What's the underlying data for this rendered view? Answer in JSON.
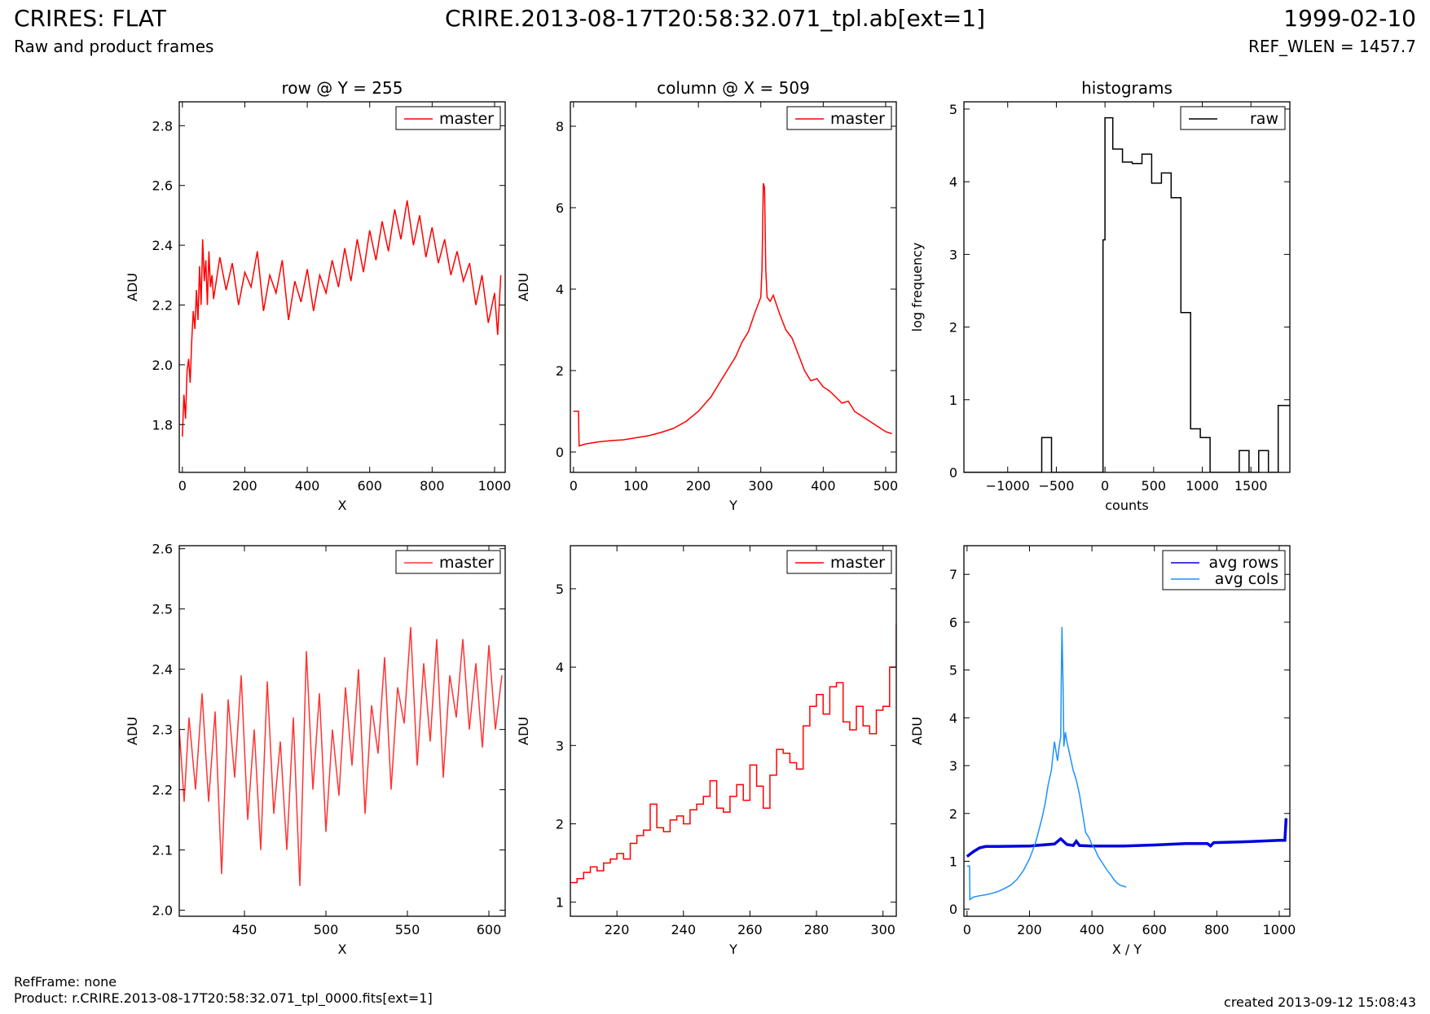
{
  "header": {
    "title_left": "CRIRES: FLAT",
    "subtitle_left": "Raw and product frames",
    "title_center": "CRIRE.2013-08-17T20:58:32.071_tpl.ab[ext=1]",
    "title_right": "1999-02-10",
    "subtitle_right": "REF_WLEN = 1457.7"
  },
  "footer": {
    "line1": "RefFrame: none",
    "line2": "Product: r.CRIRE.2013-08-17T20:58:32.071_tpl_0000.fits[ext=1]",
    "created": "created 2013-09-12 15:08:43"
  },
  "colors": {
    "master": "#ff0000",
    "master_zoom": "#ff3333",
    "raw": "#000000",
    "avg_rows": "#0000dd",
    "avg_cols": "#1e90ff"
  },
  "chart_data": [
    {
      "id": "row",
      "type": "line",
      "title": "row @ Y = 255",
      "xlabel": "X",
      "ylabel": "ADU",
      "xlim": [
        -10,
        1034
      ],
      "ylim": [
        1.64,
        2.88
      ],
      "xticks": [
        0,
        200,
        400,
        600,
        800,
        1000
      ],
      "yticks": [
        1.8,
        2.0,
        2.2,
        2.4,
        2.6,
        2.8
      ],
      "legend": "top-right",
      "series": [
        {
          "name": "master",
          "color": "#ff0000",
          "x": [
            0,
            5,
            10,
            15,
            20,
            25,
            30,
            35,
            40,
            45,
            50,
            55,
            60,
            65,
            70,
            75,
            80,
            85,
            90,
            95,
            100,
            120,
            140,
            160,
            180,
            200,
            220,
            240,
            260,
            280,
            300,
            320,
            340,
            360,
            380,
            400,
            420,
            440,
            460,
            480,
            500,
            520,
            540,
            560,
            580,
            600,
            620,
            640,
            660,
            680,
            700,
            720,
            740,
            760,
            780,
            800,
            820,
            840,
            860,
            880,
            900,
            920,
            940,
            960,
            980,
            1000,
            1010,
            1020
          ],
          "y": [
            1.76,
            1.9,
            1.82,
            1.98,
            2.02,
            1.94,
            2.08,
            2.18,
            2.12,
            2.25,
            2.15,
            2.33,
            2.2,
            2.42,
            2.28,
            2.35,
            2.2,
            2.38,
            2.26,
            2.3,
            2.22,
            2.36,
            2.25,
            2.34,
            2.2,
            2.31,
            2.26,
            2.38,
            2.18,
            2.3,
            2.24,
            2.35,
            2.15,
            2.28,
            2.21,
            2.32,
            2.18,
            2.3,
            2.24,
            2.35,
            2.26,
            2.39,
            2.28,
            2.42,
            2.31,
            2.45,
            2.35,
            2.48,
            2.38,
            2.52,
            2.42,
            2.55,
            2.4,
            2.5,
            2.36,
            2.46,
            2.34,
            2.42,
            2.3,
            2.38,
            2.28,
            2.34,
            2.2,
            2.3,
            2.14,
            2.24,
            2.1,
            2.3
          ]
        }
      ]
    },
    {
      "id": "col",
      "type": "line",
      "title": "column @ X = 509",
      "xlabel": "Y",
      "ylabel": "ADU",
      "xlim": [
        -5,
        517
      ],
      "ylim": [
        -0.5,
        8.6
      ],
      "xticks": [
        0,
        100,
        200,
        300,
        400,
        500
      ],
      "yticks": [
        0,
        2,
        4,
        6,
        8
      ],
      "legend": "top-right",
      "series": [
        {
          "name": "master",
          "color": "#ff0000",
          "x": [
            0,
            8,
            9,
            20,
            40,
            60,
            80,
            100,
            120,
            140,
            160,
            180,
            200,
            220,
            240,
            250,
            260,
            270,
            280,
            290,
            295,
            300,
            302,
            304,
            306,
            308,
            310,
            315,
            320,
            330,
            340,
            350,
            360,
            370,
            380,
            390,
            400,
            410,
            420,
            430,
            440,
            450,
            460,
            470,
            480,
            490,
            500,
            510
          ],
          "y": [
            1.0,
            1.0,
            0.15,
            0.2,
            0.25,
            0.28,
            0.3,
            0.35,
            0.4,
            0.48,
            0.58,
            0.75,
            1.0,
            1.35,
            1.85,
            2.1,
            2.35,
            2.7,
            2.95,
            3.4,
            3.6,
            3.8,
            4.5,
            6.6,
            6.5,
            4.5,
            3.8,
            3.7,
            3.85,
            3.4,
            3.0,
            2.8,
            2.4,
            2.0,
            1.75,
            1.8,
            1.6,
            1.5,
            1.35,
            1.2,
            1.25,
            1.0,
            0.9,
            0.8,
            0.7,
            0.6,
            0.5,
            0.45
          ]
        }
      ]
    },
    {
      "id": "hist",
      "type": "line",
      "title": "histograms",
      "xlabel": "counts",
      "ylabel": "log frequency",
      "xlim": [
        -1450,
        1900
      ],
      "ylim": [
        0,
        5.1
      ],
      "xticks": [
        -1000,
        -500,
        0,
        500,
        1000,
        1500
      ],
      "yticks": [
        0,
        1,
        2,
        3,
        4,
        5
      ],
      "legend": "top-right",
      "series": [
        {
          "name": "raw",
          "color": "#000000",
          "step": true,
          "x": [
            -1450,
            -650,
            -550,
            -100,
            -20,
            0,
            80,
            180,
            280,
            380,
            480,
            580,
            680,
            780,
            880,
            980,
            1080,
            1180,
            1280,
            1380,
            1480,
            1580,
            1680,
            1780,
            1900
          ],
          "y": [
            0,
            0.48,
            0,
            0,
            3.2,
            4.88,
            4.45,
            4.27,
            4.25,
            4.38,
            3.98,
            4.12,
            3.78,
            2.2,
            0.6,
            0.48,
            0,
            0,
            0,
            0.3,
            0,
            0.3,
            0,
            0.92,
            0.92
          ]
        }
      ]
    },
    {
      "id": "rowzoom",
      "type": "line",
      "title": "",
      "xlabel": "X",
      "ylabel": "ADU",
      "xlim": [
        410,
        610
      ],
      "ylim": [
        1.99,
        2.605
      ],
      "xticks": [
        450,
        500,
        550,
        600
      ],
      "yticks": [
        2.0,
        2.1,
        2.2,
        2.3,
        2.4,
        2.5,
        2.6
      ],
      "legend": "top-right",
      "series": [
        {
          "name": "master",
          "color": "#ff3333",
          "x": [
            410,
            413,
            416,
            420,
            424,
            428,
            432,
            436,
            440,
            444,
            448,
            452,
            456,
            460,
            464,
            468,
            472,
            476,
            480,
            484,
            488,
            492,
            496,
            500,
            504,
            508,
            512,
            516,
            520,
            524,
            528,
            532,
            536,
            540,
            544,
            548,
            552,
            556,
            560,
            564,
            568,
            572,
            576,
            580,
            584,
            588,
            592,
            596,
            600,
            604,
            608
          ],
          "y": [
            2.3,
            2.18,
            2.32,
            2.2,
            2.36,
            2.18,
            2.33,
            2.06,
            2.35,
            2.22,
            2.39,
            2.15,
            2.3,
            2.1,
            2.38,
            2.16,
            2.28,
            2.1,
            2.32,
            2.04,
            2.43,
            2.2,
            2.36,
            2.13,
            2.3,
            2.19,
            2.37,
            2.24,
            2.4,
            2.16,
            2.34,
            2.26,
            2.42,
            2.2,
            2.37,
            2.31,
            2.47,
            2.24,
            2.41,
            2.28,
            2.45,
            2.22,
            2.39,
            2.32,
            2.45,
            2.3,
            2.41,
            2.27,
            2.44,
            2.3,
            2.39
          ]
        }
      ]
    },
    {
      "id": "colzoom",
      "type": "line",
      "title": "",
      "xlabel": "Y",
      "ylabel": "ADU",
      "xlim": [
        206,
        304
      ],
      "ylim": [
        0.82,
        5.55
      ],
      "xticks": [
        220,
        240,
        260,
        280,
        300
      ],
      "yticks": [
        1,
        2,
        3,
        4,
        5
      ],
      "legend": "top-right",
      "series": [
        {
          "name": "master",
          "color": "#ff0000",
          "step": true,
          "x": [
            206,
            208,
            210,
            212,
            214,
            216,
            218,
            220,
            222,
            224,
            226,
            228,
            230,
            232,
            234,
            236,
            238,
            240,
            242,
            244,
            246,
            248,
            250,
            252,
            254,
            256,
            258,
            260,
            262,
            264,
            266,
            268,
            270,
            272,
            274,
            276,
            278,
            280,
            282,
            284,
            286,
            288,
            290,
            292,
            294,
            296,
            298,
            300,
            302,
            304
          ],
          "y": [
            1.25,
            1.3,
            1.38,
            1.45,
            1.4,
            1.5,
            1.55,
            1.62,
            1.55,
            1.75,
            1.85,
            1.92,
            2.25,
            1.95,
            1.9,
            2.05,
            2.1,
            2.0,
            2.18,
            2.25,
            2.35,
            2.55,
            2.2,
            2.15,
            2.35,
            2.5,
            2.3,
            2.75,
            2.48,
            2.2,
            2.62,
            2.95,
            2.9,
            2.78,
            2.7,
            3.25,
            3.5,
            3.65,
            3.4,
            3.75,
            3.8,
            3.3,
            3.2,
            3.5,
            3.25,
            3.15,
            3.45,
            3.5,
            4.0,
            4.55
          ]
        }
      ]
    },
    {
      "id": "avg",
      "type": "line",
      "title": "",
      "xlabel": "X / Y",
      "ylabel": "ADU",
      "xlim": [
        -10,
        1034
      ],
      "ylim": [
        -0.15,
        7.6
      ],
      "xticks": [
        0,
        200,
        400,
        600,
        800,
        1000
      ],
      "yticks": [
        0,
        1,
        2,
        3,
        4,
        5,
        6,
        7
      ],
      "legend": "top-right",
      "series": [
        {
          "name": "avg rows",
          "color": "#0000dd",
          "width": 3.5,
          "x": [
            0,
            20,
            40,
            60,
            100,
            200,
            280,
            300,
            320,
            340,
            350,
            360,
            400,
            500,
            600,
            700,
            770,
            780,
            790,
            900,
            1000,
            1018,
            1022
          ],
          "y": [
            1.1,
            1.2,
            1.28,
            1.31,
            1.31,
            1.32,
            1.36,
            1.47,
            1.35,
            1.33,
            1.42,
            1.33,
            1.32,
            1.32,
            1.34,
            1.37,
            1.37,
            1.32,
            1.39,
            1.41,
            1.44,
            1.44,
            1.9
          ]
        },
        {
          "name": "avg cols",
          "color": "#1e90ff",
          "width": 1.5,
          "x": [
            0,
            8,
            9,
            20,
            40,
            60,
            80,
            100,
            120,
            140,
            160,
            180,
            200,
            220,
            240,
            250,
            260,
            270,
            280,
            290,
            295,
            300,
            302,
            304,
            306,
            308,
            310,
            315,
            320,
            330,
            340,
            350,
            360,
            370,
            380,
            390,
            400,
            410,
            420,
            430,
            440,
            450,
            460,
            470,
            480,
            490,
            500,
            510
          ],
          "y": [
            0.9,
            0.9,
            0.2,
            0.25,
            0.28,
            0.3,
            0.33,
            0.37,
            0.43,
            0.5,
            0.62,
            0.8,
            1.05,
            1.4,
            1.9,
            2.2,
            2.6,
            2.9,
            3.5,
            3.1,
            3.4,
            3.6,
            4.8,
            5.9,
            5.2,
            4.6,
            3.4,
            3.7,
            3.5,
            3.2,
            2.9,
            2.7,
            2.4,
            2.0,
            1.6,
            1.5,
            1.35,
            1.25,
            1.1,
            1.0,
            0.9,
            0.8,
            0.72,
            0.62,
            0.55,
            0.5,
            0.48,
            0.46
          ]
        }
      ]
    }
  ]
}
